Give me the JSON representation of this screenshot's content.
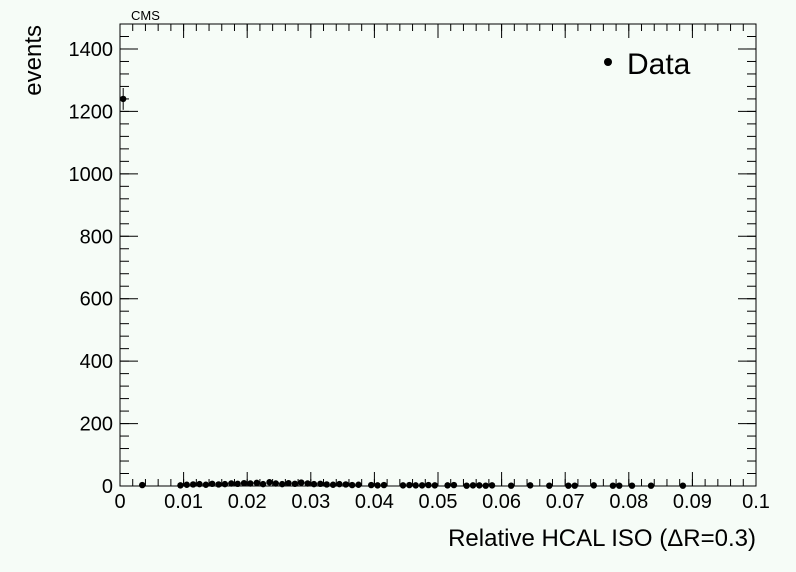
{
  "header": {
    "label": "CMS"
  },
  "chart_data": {
    "type": "scatter",
    "title": "",
    "xlabel": "Relative HCAL ISO (ΔR=0.3)",
    "ylabel": "events",
    "xlim": [
      0,
      0.1
    ],
    "ylim": [
      0,
      1480
    ],
    "x_ticks": [
      0,
      0.01,
      0.02,
      0.03,
      0.04,
      0.05,
      0.06,
      0.07,
      0.08,
      0.09,
      0.1
    ],
    "x_tick_labels": [
      "0",
      "0.01",
      "0.02",
      "0.03",
      "0.04",
      "0.05",
      "0.06",
      "0.07",
      "0.08",
      "0.09",
      "0.1"
    ],
    "y_ticks": [
      0,
      200,
      400,
      600,
      800,
      1000,
      1200,
      1400
    ],
    "y_tick_labels": [
      "0",
      "200",
      "400",
      "600",
      "800",
      "1000",
      "1200",
      "1400"
    ],
    "grid": false,
    "legend": {
      "position": "top-right",
      "entries": [
        "Data"
      ]
    },
    "series": [
      {
        "name": "Data",
        "color": "#000000",
        "marker": "circle",
        "x": [
          0.0005,
          0.0035,
          0.0095,
          0.0105,
          0.0115,
          0.0125,
          0.0135,
          0.0145,
          0.0155,
          0.0165,
          0.0175,
          0.0185,
          0.0195,
          0.0205,
          0.0215,
          0.0225,
          0.0235,
          0.0245,
          0.0255,
          0.0265,
          0.0275,
          0.0285,
          0.0295,
          0.0305,
          0.0315,
          0.0325,
          0.0335,
          0.0345,
          0.0355,
          0.0365,
          0.0375,
          0.0395,
          0.0405,
          0.0415,
          0.0445,
          0.0455,
          0.0465,
          0.0475,
          0.0485,
          0.0495,
          0.0515,
          0.0525,
          0.0545,
          0.0555,
          0.0565,
          0.0575,
          0.0585,
          0.0615,
          0.0645,
          0.0675,
          0.0705,
          0.0715,
          0.0745,
          0.0775,
          0.0785,
          0.0805,
          0.0835,
          0.0885
        ],
        "y": [
          1240,
          3,
          2,
          4,
          5,
          6,
          4,
          7,
          5,
          6,
          8,
          7,
          9,
          8,
          10,
          6,
          12,
          8,
          6,
          9,
          7,
          11,
          8,
          6,
          7,
          5,
          4,
          6,
          5,
          3,
          4,
          3,
          2,
          3,
          2,
          3,
          2,
          2,
          3,
          2,
          2,
          3,
          1,
          2,
          2,
          1,
          2,
          1,
          2,
          1,
          1,
          1,
          2,
          1,
          1,
          1,
          1,
          1
        ],
        "yerr": [
          35,
          2,
          1,
          2,
          2,
          2,
          2,
          3,
          2,
          2,
          3,
          3,
          3,
          3,
          3,
          2,
          3,
          3,
          2,
          3,
          3,
          3,
          3,
          2,
          3,
          2,
          2,
          2,
          2,
          2,
          2,
          2,
          1,
          2,
          1,
          2,
          1,
          1,
          2,
          1,
          1,
          2,
          1,
          1,
          1,
          1,
          1,
          1,
          1,
          1,
          1,
          1,
          1,
          1,
          1,
          1,
          1,
          1
        ]
      }
    ]
  }
}
